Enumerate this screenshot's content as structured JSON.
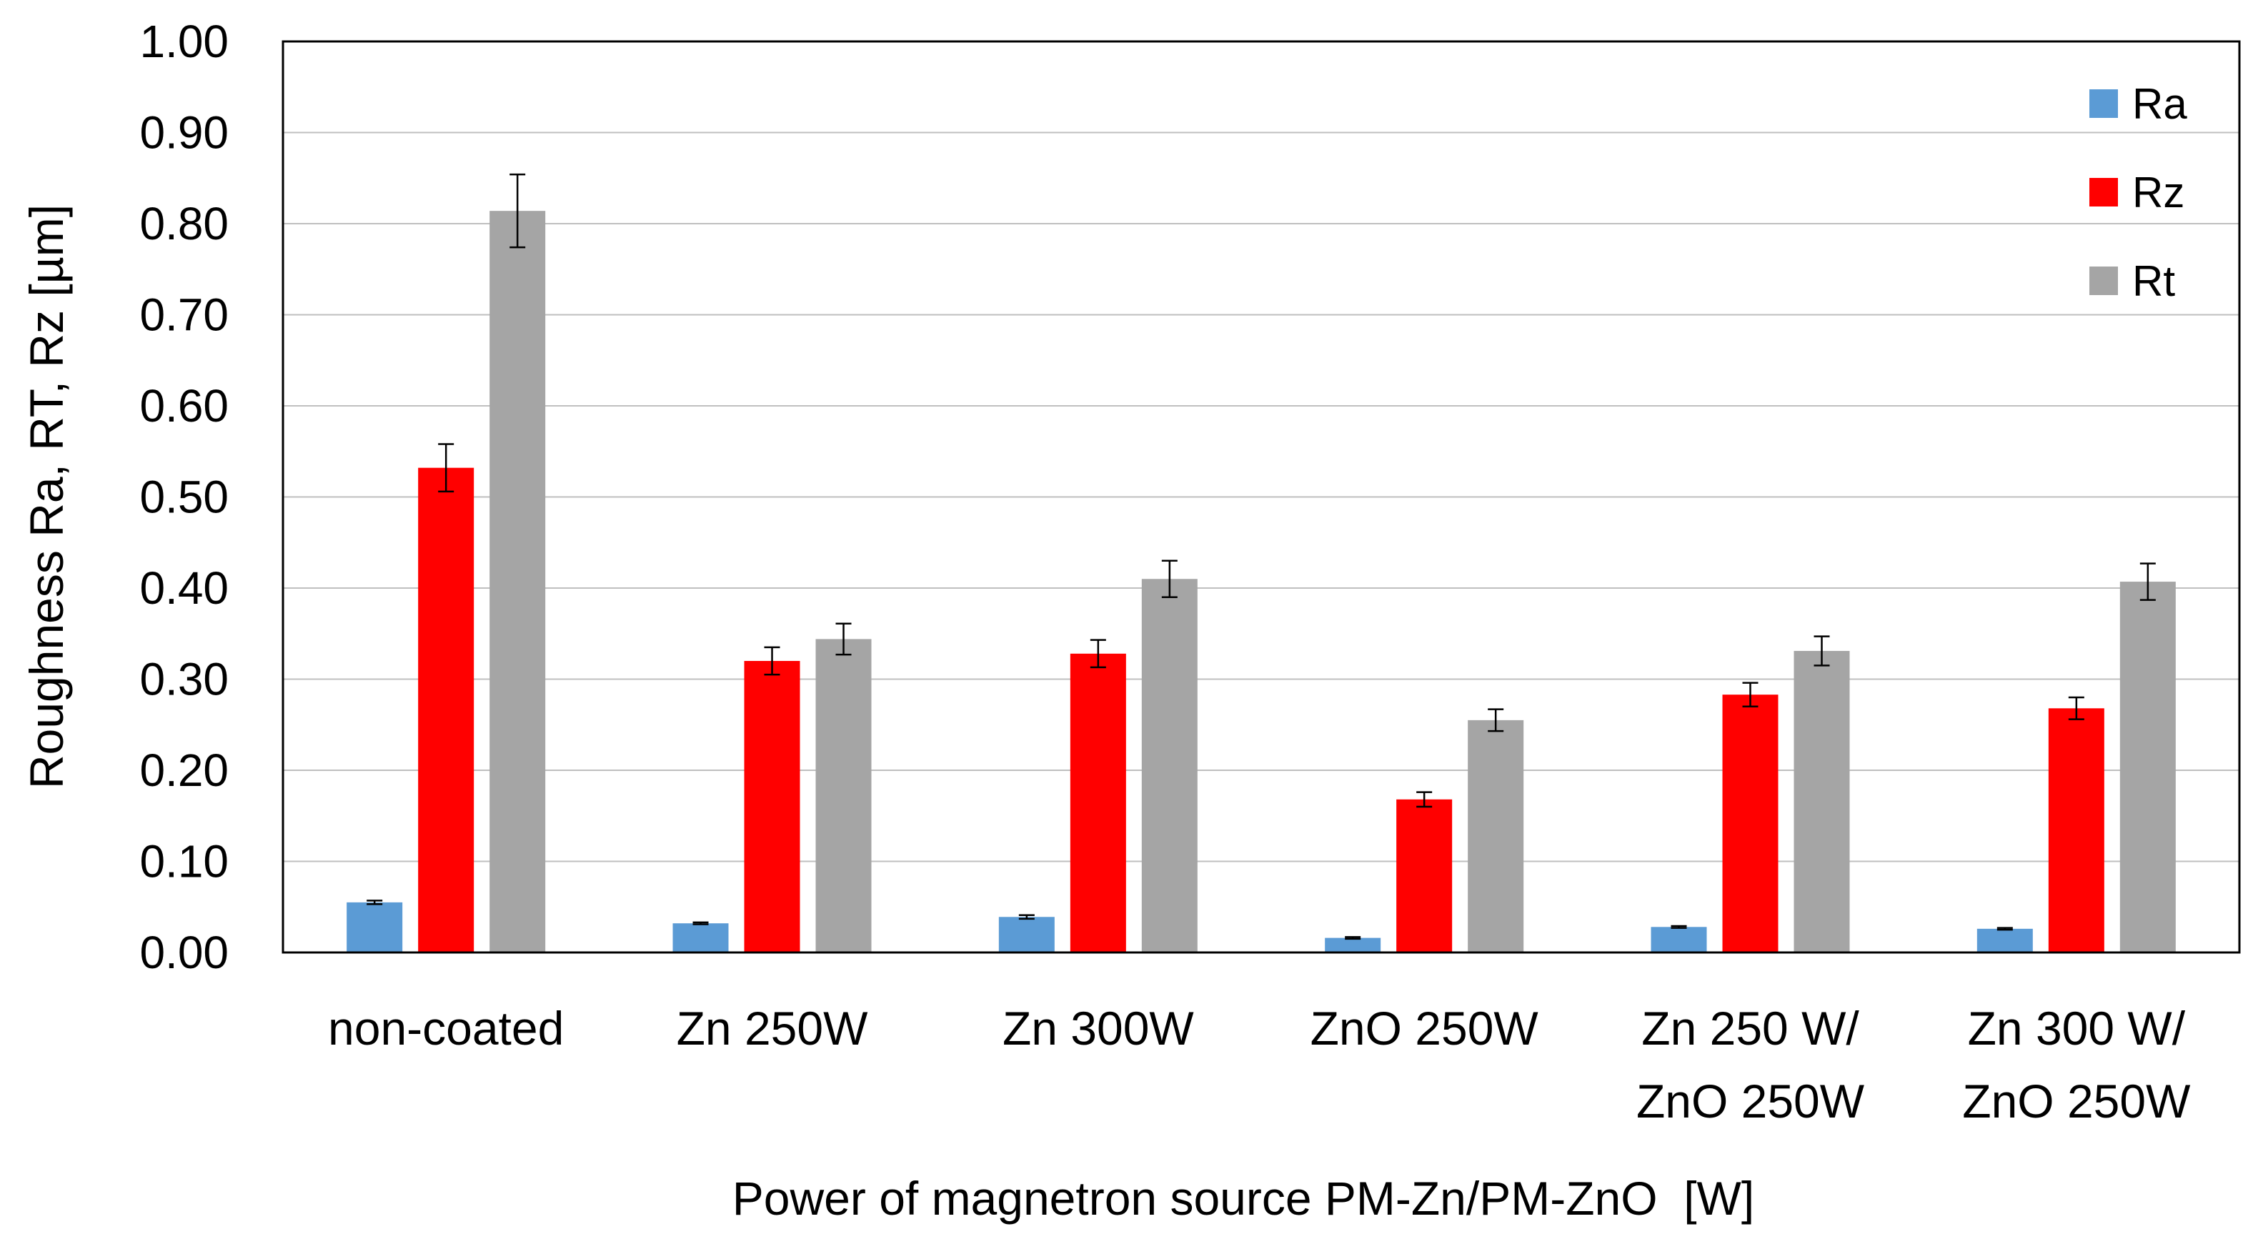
{
  "chart_data": {
    "type": "bar",
    "xlabel": "Power of magnetron source PM-Zn/PM-ZnO  [W]",
    "ylabel": "Roughness Ra, RT, Rz [µm]",
    "ylim": [
      0,
      1.0
    ],
    "ytick_step": 0.1,
    "ytick_labels": [
      "0.00",
      "0.10",
      "0.20",
      "0.30",
      "0.40",
      "0.50",
      "0.60",
      "0.70",
      "0.80",
      "0.90",
      "1.00"
    ],
    "grid": true,
    "legend_position": "top-right",
    "categories": [
      [
        "non-coated"
      ],
      [
        "Zn 250W"
      ],
      [
        "Zn 300W"
      ],
      [
        "ZnO 250W"
      ],
      [
        "Zn 250 W/",
        "ZnO 250W"
      ],
      [
        "Zn 300 W/",
        "ZnO 250W"
      ]
    ],
    "series": [
      {
        "name": "Ra",
        "color": "#5b9bd5",
        "values": [
          0.055,
          0.032,
          0.039,
          0.016,
          0.028,
          0.026
        ],
        "errors": [
          0.002,
          0.001,
          0.002,
          0.001,
          0.001,
          0.001
        ]
      },
      {
        "name": "Rz",
        "color": "#ff0000",
        "values": [
          0.532,
          0.32,
          0.328,
          0.168,
          0.283,
          0.268
        ],
        "errors": [
          0.026,
          0.015,
          0.015,
          0.008,
          0.013,
          0.012
        ]
      },
      {
        "name": "Rt",
        "color": "#a5a5a5",
        "values": [
          0.814,
          0.344,
          0.41,
          0.255,
          0.331,
          0.407
        ],
        "errors": [
          0.04,
          0.017,
          0.02,
          0.012,
          0.016,
          0.02
        ]
      }
    ]
  }
}
